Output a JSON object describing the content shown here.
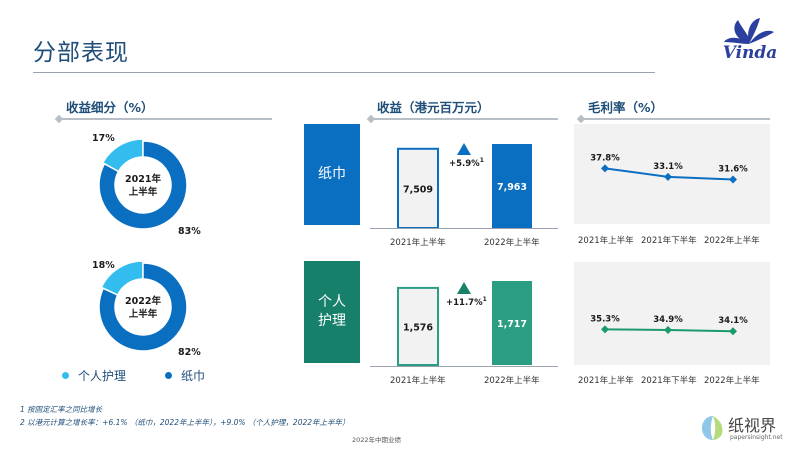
{
  "page": {
    "title": "分部表现",
    "footer": "2022年中期业绩"
  },
  "logo": {
    "text": "Vinda"
  },
  "watermark": {
    "cn": "纸视界",
    "url": "papersinsight.net"
  },
  "sections": {
    "revenue_share": "收益细分（%）",
    "revenue": "收益（港元百万元）",
    "gross_margin": "毛利率（%）"
  },
  "row_labels": {
    "tissue": "纸巾",
    "personal_care_line1": "个人",
    "personal_care_line2": "护理"
  },
  "legend": {
    "personal_care": "个人护理",
    "tissue": "纸巾",
    "personal_care_color": "#33bdee",
    "tissue_color": "#0b6fc1"
  },
  "footnotes": {
    "note1": "1 按固定汇率之同比增长",
    "note2": "2 以港元计算之增长率：+6.1% （纸巾，2022年上半年），+9.0% （个人护理，2022年上半年）"
  },
  "chart_data": [
    {
      "type": "pie",
      "center_label_line1": "2021年",
      "center_label_line2": "上半年",
      "slices": [
        {
          "name": "个人护理",
          "value": 17,
          "label": "17%",
          "color": "#33bdee"
        },
        {
          "name": "纸巾",
          "value": 83,
          "label": "83%",
          "color": "#0b6fc1"
        }
      ]
    },
    {
      "type": "pie",
      "center_label_line1": "2022年",
      "center_label_line2": "上半年",
      "slices": [
        {
          "name": "个人护理",
          "value": 18,
          "label": "18%",
          "color": "#33bdee"
        },
        {
          "name": "纸巾",
          "value": 82,
          "label": "82%",
          "color": "#0b6fc1"
        }
      ]
    },
    {
      "type": "bar",
      "segment": "纸巾",
      "categories": [
        "2021年上半年",
        "2022年上半年"
      ],
      "values": [
        7509,
        7963
      ],
      "value_labels": [
        "7,509",
        "7,963"
      ],
      "growth_label": "+5.9%",
      "growth_note": "1",
      "accent": "#0b6fc1"
    },
    {
      "type": "bar",
      "segment": "个人护理",
      "categories": [
        "2021年上半年",
        "2022年上半年"
      ],
      "values": [
        1576,
        1717
      ],
      "value_labels": [
        "1,576",
        "1,717"
      ],
      "growth_label": "+11.7%",
      "growth_note": "1",
      "accent": "#2a9d83"
    },
    {
      "type": "line",
      "segment": "纸巾",
      "categories": [
        "2021年上半年",
        "2021年下半年",
        "2022年上半年"
      ],
      "values": [
        37.8,
        33.1,
        31.6
      ],
      "value_labels": [
        "37.8%",
        "33.1%",
        "31.6%"
      ],
      "color": "#0b6fc1"
    },
    {
      "type": "line",
      "segment": "个人护理",
      "categories": [
        "2021年上半年",
        "2021年下半年",
        "2022年上半年"
      ],
      "values": [
        35.3,
        34.9,
        34.1
      ],
      "value_labels": [
        "35.3%",
        "34.9%",
        "34.1%"
      ],
      "color": "#1b9a6c"
    }
  ]
}
